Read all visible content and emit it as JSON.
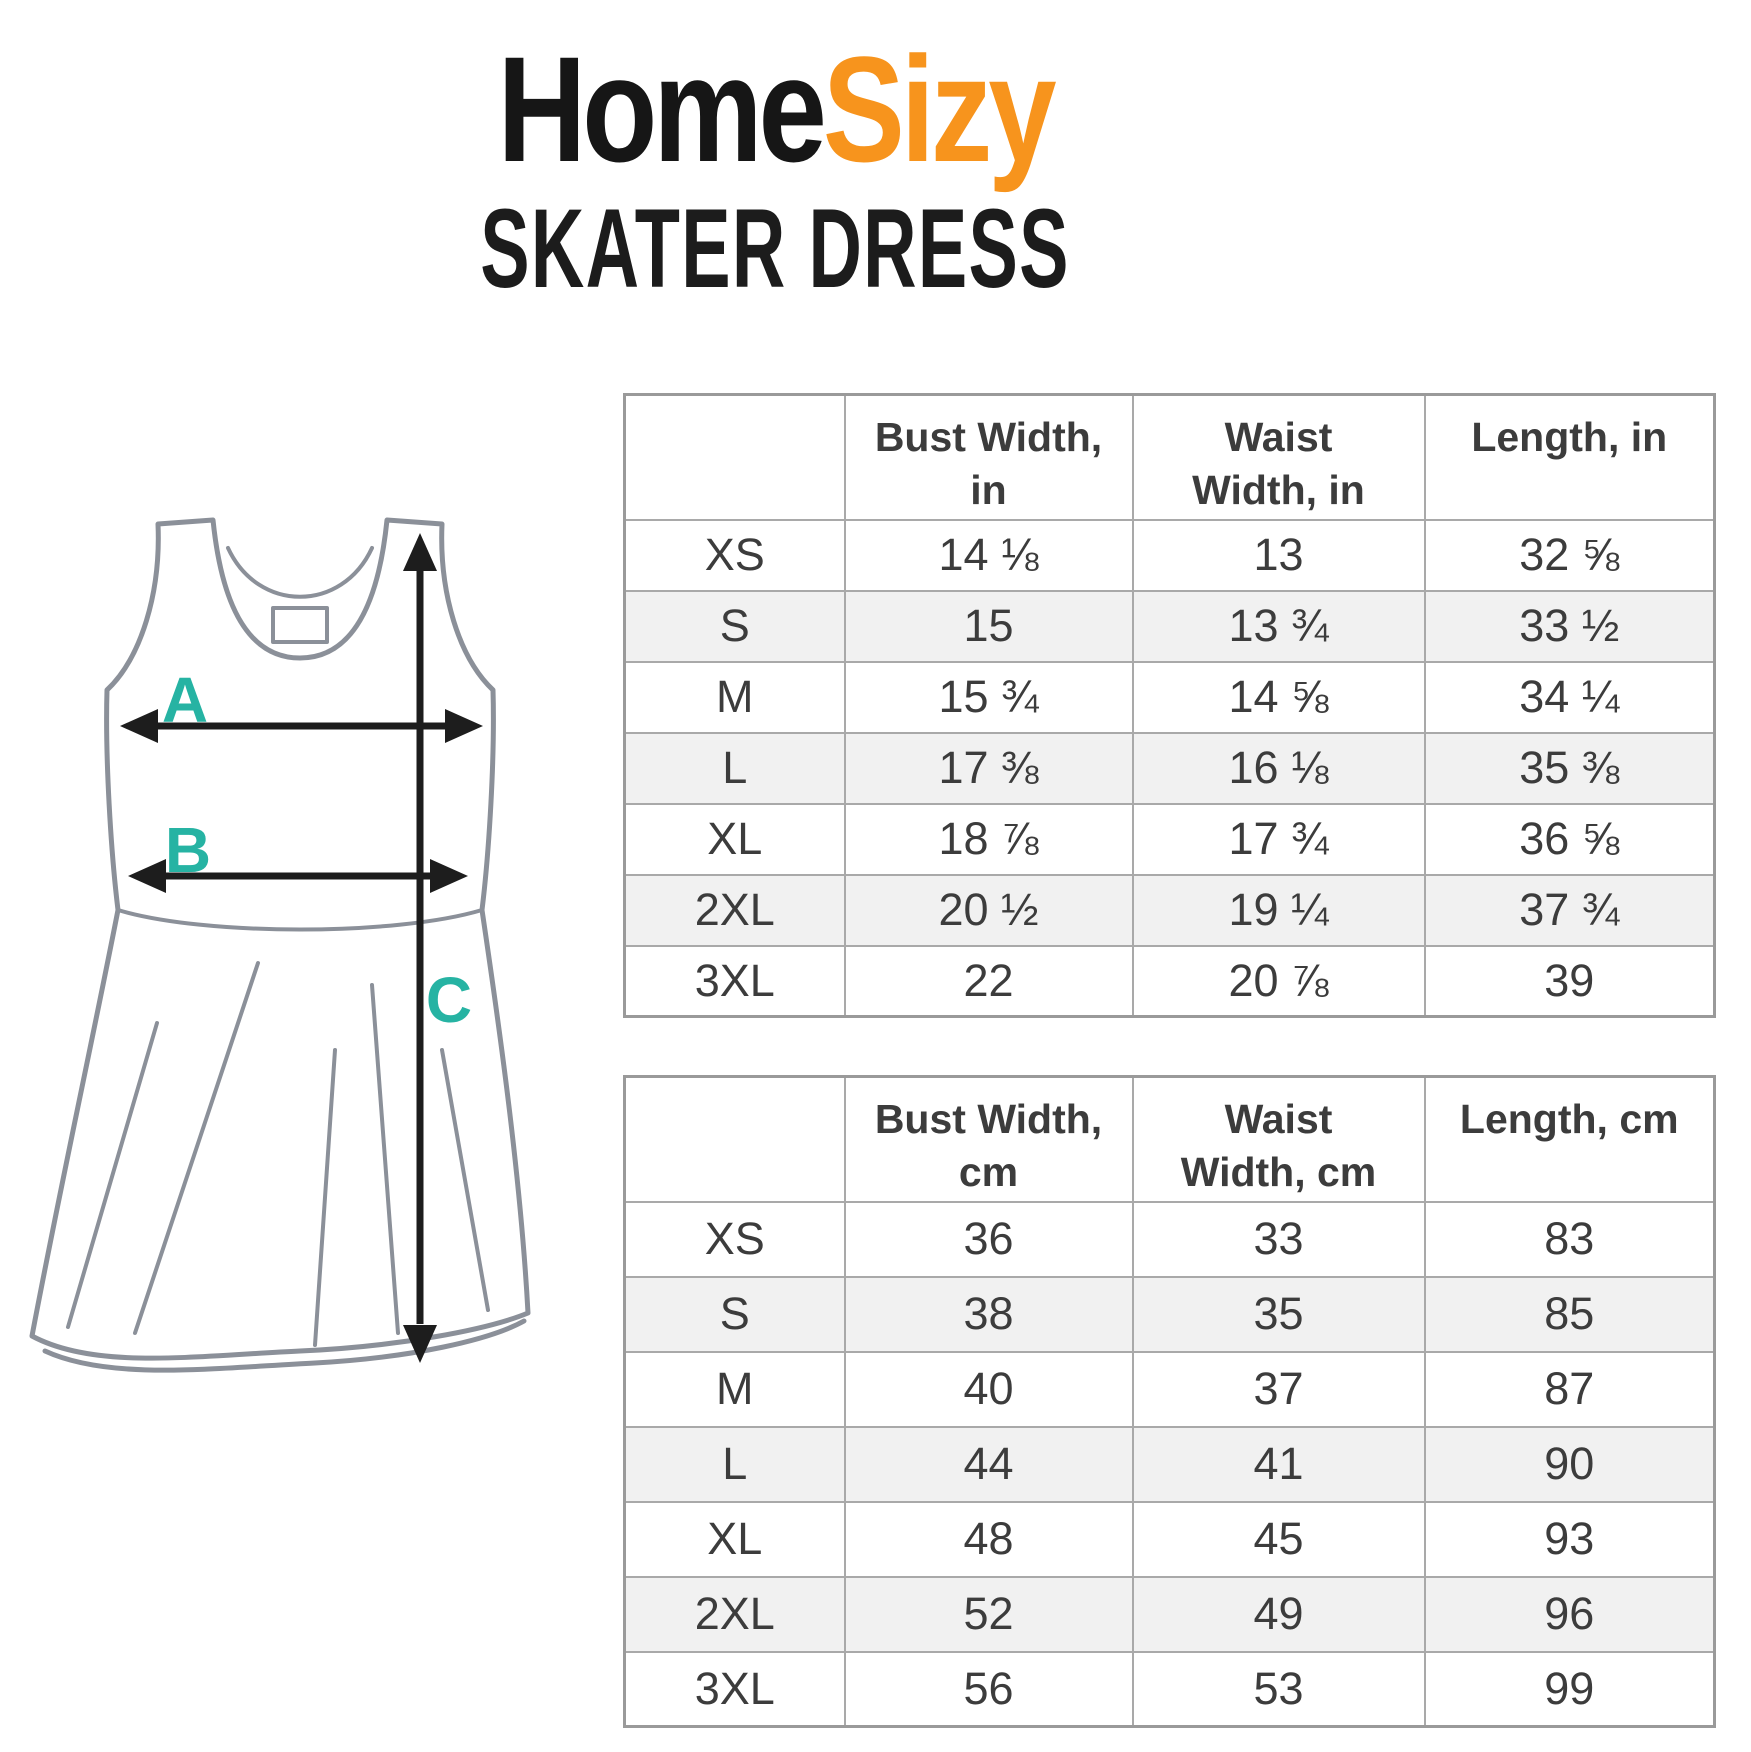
{
  "logo": {
    "part1": "Home",
    "part2": "Sizy"
  },
  "subtitle": "SKATER DRESS",
  "diagram": {
    "label_a": "A",
    "label_b": "B",
    "label_c": "C"
  },
  "colors": {
    "logo_black": "#161616",
    "logo_orange": "#f7941d",
    "label_teal": "#26b3a3",
    "outline_gray": "#8b9099",
    "arrow_black": "#1d1d1d",
    "table_border": "#a9a9a9",
    "alt_row_gray": "#f1f1f1",
    "table_text": "#3c3c3c"
  },
  "tables": [
    {
      "title_unit": "inches",
      "columns": [
        "",
        "Bust Width,\nin",
        "Waist\nWidth, in",
        "Length, in"
      ],
      "rows": [
        [
          "XS",
          "14 ⅛",
          "13",
          "32 ⅝"
        ],
        [
          "S",
          "15",
          "13 ¾",
          "33 ½"
        ],
        [
          "M",
          "15 ¾",
          "14 ⅝",
          "34 ¼"
        ],
        [
          "L",
          "17 ⅜",
          "16 ⅛",
          "35 ⅜"
        ],
        [
          "XL",
          "18 ⅞",
          "17 ¾",
          "36 ⅝"
        ],
        [
          "2XL",
          "20 ½",
          "19 ¼",
          "37 ¾"
        ],
        [
          "3XL",
          "22",
          "20 ⅞",
          "39"
        ]
      ]
    },
    {
      "title_unit": "cm",
      "columns": [
        "",
        "Bust Width,\ncm",
        "Waist\nWidth, cm",
        "Length, cm"
      ],
      "rows": [
        [
          "XS",
          "36",
          "33",
          "83"
        ],
        [
          "S",
          "38",
          "35",
          "85"
        ],
        [
          "M",
          "40",
          "37",
          "87"
        ],
        [
          "L",
          "44",
          "41",
          "90"
        ],
        [
          "XL",
          "48",
          "45",
          "93"
        ],
        [
          "2XL",
          "52",
          "49",
          "96"
        ],
        [
          "3XL",
          "56",
          "53",
          "99"
        ]
      ]
    }
  ]
}
